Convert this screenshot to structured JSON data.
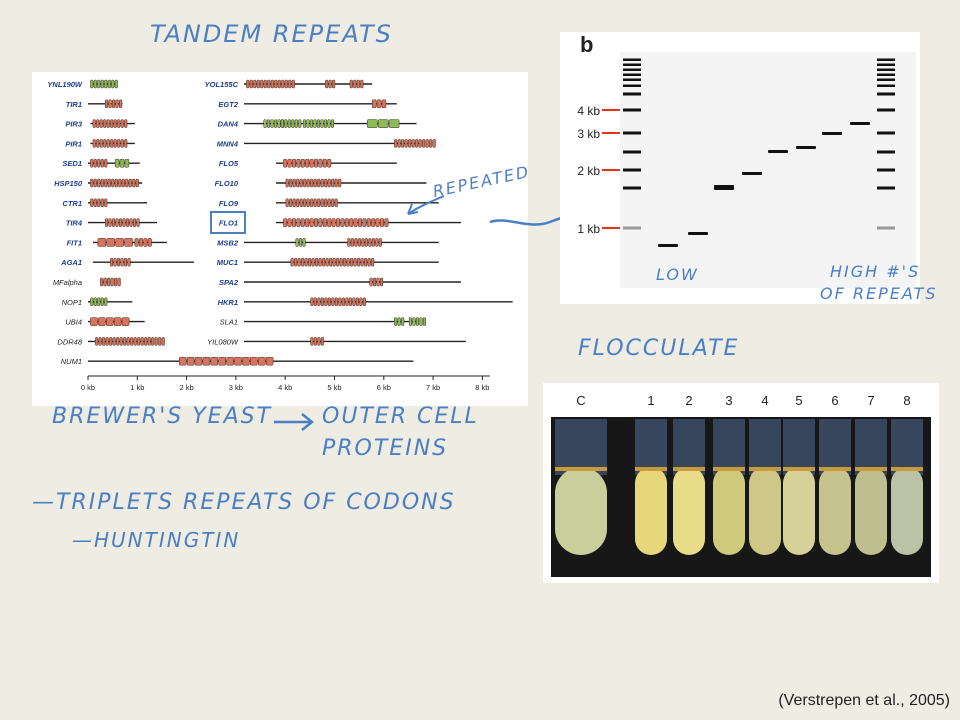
{
  "notes": {
    "title": "TANDEM REPEATS",
    "repeated": "REPEATED",
    "low": "LOW",
    "high_line1": "HIGH #'S",
    "high_line2": "OF REPEATS",
    "flocculate": "FLOCCULATE",
    "brewers": "BREWER'S YEAST",
    "outer_line1": "OUTER CELL",
    "outer_line2": "PROTEINS",
    "triplets": "—TRIPLETS REPEATS OF CODONS",
    "huntingtin": "—HUNTINGTIN"
  },
  "gene_figure": {
    "left_genes": [
      "YNL190W",
      "TIR1",
      "PIR3",
      "PIR1",
      "SED1",
      "HSP150",
      "CTR1",
      "TIR4",
      "FIT1",
      "AGA1",
      "MFalpha",
      "NOP1",
      "UBI4",
      "DDR48",
      "NUM1"
    ],
    "right_genes": [
      "YOL155C",
      "EGT2",
      "DAN4",
      "MNN4",
      "FLO5",
      "FLO10",
      "FLO9",
      "FLO1",
      "MSB2",
      "MUC1",
      "SPA2",
      "HKR1",
      "SLA1",
      "YIL080W"
    ],
    "axis_ticks": [
      "0 kb",
      "1 kb",
      "2 kb",
      "3 kb",
      "4 kb",
      "5 kb",
      "6 kb",
      "7 kb",
      "8 kb"
    ],
    "colors": {
      "repeat_red": "#d7735e",
      "repeat_green": "#8dbb5a",
      "label_blue": "#1d3c8f"
    }
  },
  "gel_figure": {
    "panel_label": "b",
    "size_markers": [
      "4 kb",
      "3 kb",
      "2 kb",
      "1 kb"
    ],
    "marker_color": "#d9381e"
  },
  "tube_figure": {
    "lane_labels": [
      "C",
      "1",
      "2",
      "3",
      "4",
      "5",
      "6",
      "7",
      "8"
    ]
  },
  "citation": "(Verstrepen et al., 2005)"
}
